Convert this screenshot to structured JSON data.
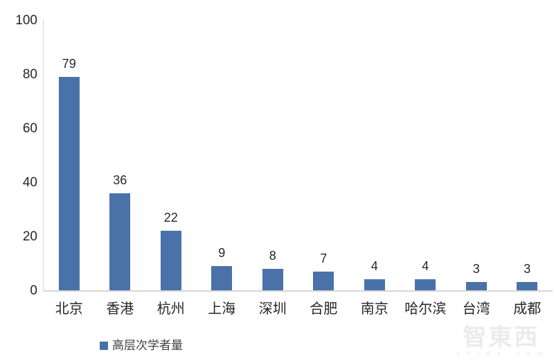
{
  "chart_data": {
    "type": "bar",
    "categories": [
      "北京",
      "香港",
      "杭州",
      "上海",
      "深圳",
      "合肥",
      "南京",
      "哈尔滨",
      "台湾",
      "成都"
    ],
    "values": [
      79,
      36,
      22,
      9,
      8,
      7,
      4,
      4,
      3,
      3
    ],
    "series": [
      {
        "name": "高层次学者量",
        "values": [
          79,
          36,
          22,
          9,
          8,
          7,
          4,
          4,
          3,
          3
        ]
      }
    ],
    "title": "",
    "xlabel": "",
    "ylabel": "",
    "ylim": [
      0,
      100
    ],
    "yticks": [
      0,
      20,
      40,
      60,
      80,
      100
    ],
    "grid": false,
    "legend_position": "bottom-left",
    "bar_color": "#4a72a8",
    "data_labels_shown": true
  },
  "legend": {
    "label": "高层次学者量",
    "swatch_color": "#4a72a8"
  },
  "watermark": {
    "logo_text": "智東西",
    "subtext": "z h i d x . c o m"
  }
}
